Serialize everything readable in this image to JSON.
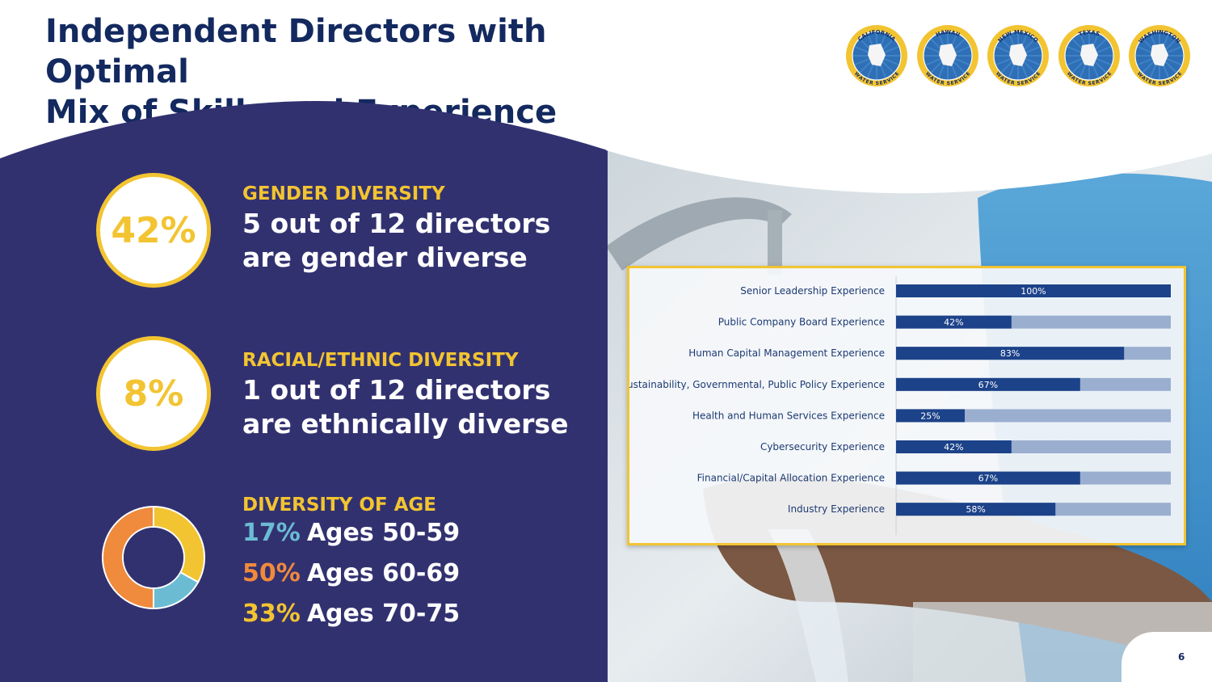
{
  "title_lines": [
    "Independent Directors with Optimal",
    "Mix of Skills and Experience"
  ],
  "logos": [
    {
      "top": "CALIFORNIA",
      "bottom": "WATER SERVICE",
      "icon": "california-shape-icon"
    },
    {
      "top": "HAWAII",
      "bottom": "WATER SERVICE",
      "icon": "hawaii-islands-icon"
    },
    {
      "top": "NEW MEXICO",
      "bottom": "WATER SERVICE",
      "icon": "new-mexico-shape-icon"
    },
    {
      "top": "TEXAS",
      "bottom": "WATER SERVICE",
      "icon": "texas-shape-icon"
    },
    {
      "top": "WASHINGTON",
      "bottom": "WATER SERVICE",
      "icon": "washington-shape-icon"
    }
  ],
  "gender": {
    "percent": "42%",
    "heading": "GENDER DIVERSITY",
    "lines": [
      "5 out of 12 directors",
      "are gender diverse"
    ]
  },
  "ethnic": {
    "percent": "8%",
    "heading": "RACIAL/ETHNIC DIVERSITY",
    "lines": [
      "1 out of 12 directors",
      "are ethnically diverse"
    ]
  },
  "age": {
    "heading": "DIVERSITY OF AGE",
    "groups": [
      {
        "pct": "17%",
        "label": "Ages 50-59",
        "color": "#6bbcd3",
        "value": 17
      },
      {
        "pct": "50%",
        "label": "Ages 60-69",
        "color": "#f08a3c",
        "value": 50
      },
      {
        "pct": "33%",
        "label": "Ages 70-75",
        "color": "#f2c431",
        "value": 33
      }
    ]
  },
  "colors": {
    "navy": "#323170",
    "gold": "#f2c431",
    "title": "#13295f",
    "bar_fill": "#1c4289",
    "bar_track": "#9aaed0"
  },
  "page_number": "6",
  "chart_data": {
    "type": "bar",
    "orientation": "horizontal",
    "categories": [
      "Senior Leadership Experience",
      "Public Company Board Experience",
      "Human Capital Management Experience",
      "Sustainability, Governmental, Public Policy Experience",
      "Health and Human Services Experience",
      "Cybersecurity Experience",
      "Financial/Capital Allocation Experience",
      "Industry Experience"
    ],
    "values": [
      100,
      42,
      83,
      67,
      25,
      42,
      67,
      58
    ],
    "labels": [
      "100%",
      "42%",
      "83%",
      "67%",
      "25%",
      "42%",
      "67%",
      "58%"
    ],
    "xlim": [
      0,
      100
    ],
    "grid": false
  }
}
